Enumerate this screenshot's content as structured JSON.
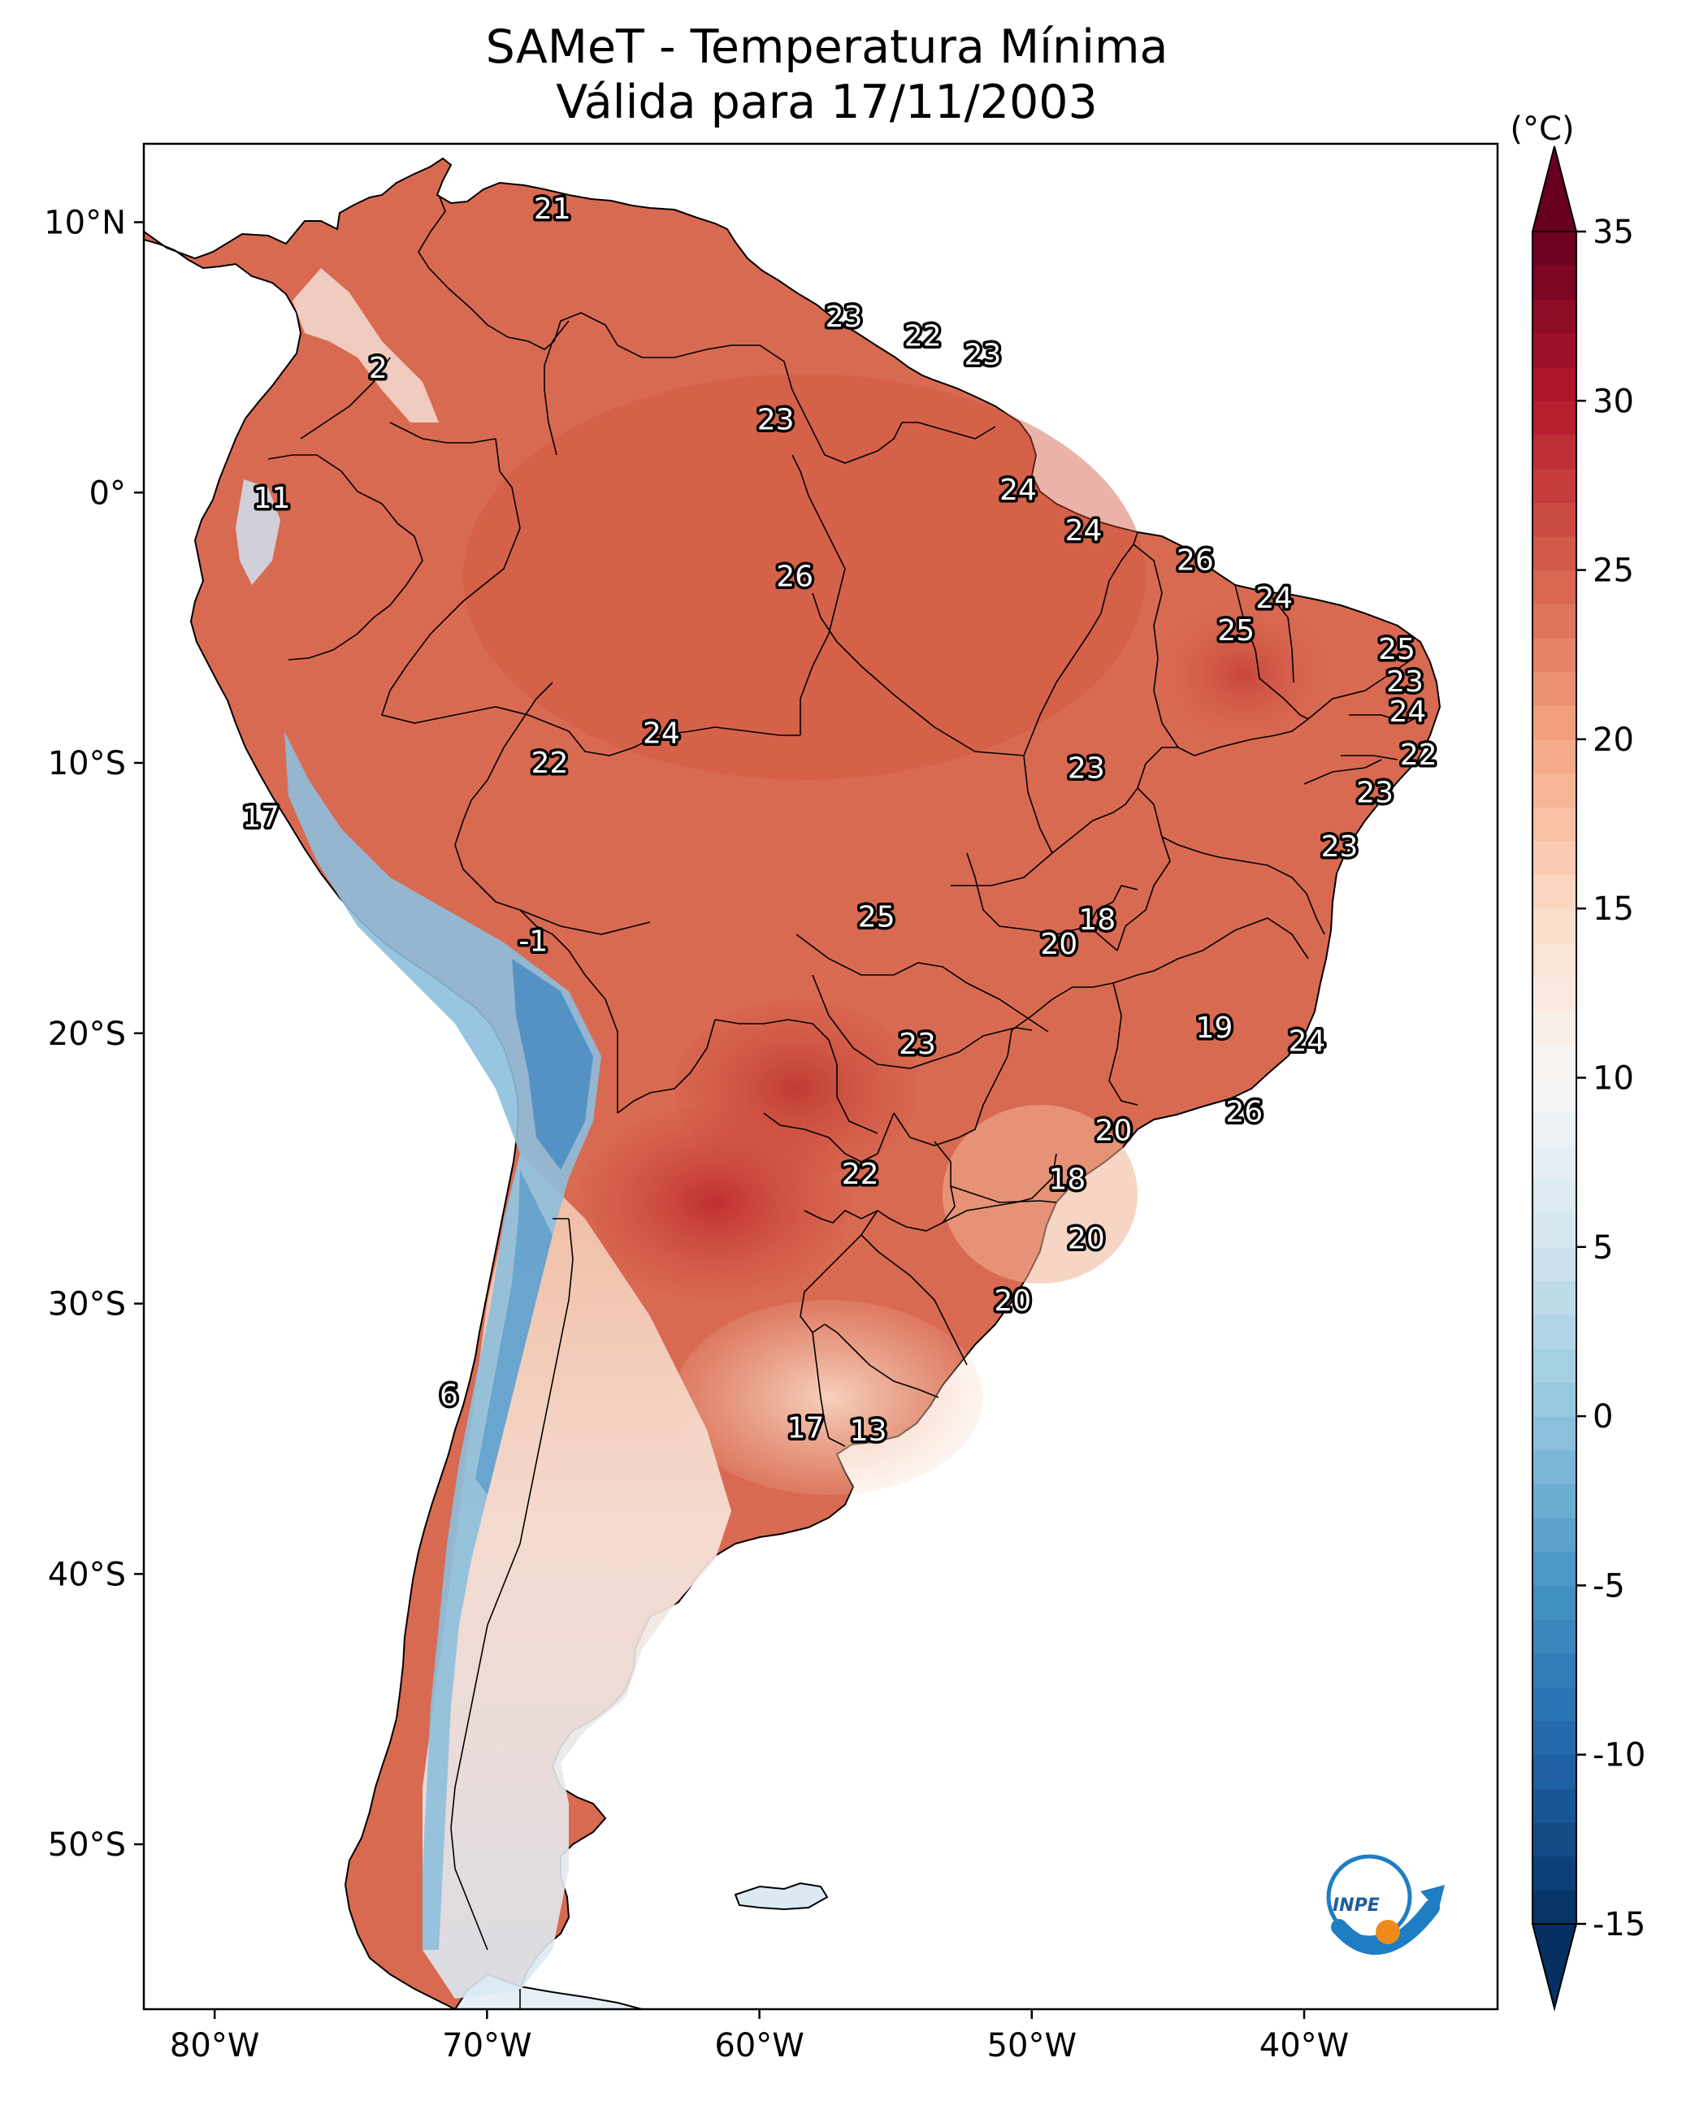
{
  "title": {
    "line1": "SAMeT - Temperatura Mínima",
    "line2": "Válida para 17/11/2003"
  },
  "map": {
    "lon_range": [
      -82.6,
      -32.9
    ],
    "lat_range": [
      -56.1,
      12.9
    ],
    "x_ticks": [
      {
        "lon": -80,
        "label": "80°W"
      },
      {
        "lon": -70,
        "label": "70°W"
      },
      {
        "lon": -60,
        "label": "60°W"
      },
      {
        "lon": -50,
        "label": "50°W"
      },
      {
        "lon": -40,
        "label": "40°W"
      }
    ],
    "y_ticks": [
      {
        "lat": 10,
        "label": "10°N"
      },
      {
        "lat": 0,
        "label": "0°"
      },
      {
        "lat": -10,
        "label": "10°S"
      },
      {
        "lat": -20,
        "label": "20°S"
      },
      {
        "lat": -30,
        "label": "30°S"
      },
      {
        "lat": -40,
        "label": "40°S"
      },
      {
        "lat": -50,
        "label": "50°S"
      }
    ],
    "value_labels": [
      {
        "lon": -67.6,
        "lat": 10.5,
        "text": "21"
      },
      {
        "lon": -56.9,
        "lat": 6.5,
        "text": "23"
      },
      {
        "lon": -54.0,
        "lat": 5.8,
        "text": "22"
      },
      {
        "lon": -51.8,
        "lat": 5.1,
        "text": "23"
      },
      {
        "lon": -59.4,
        "lat": 2.7,
        "text": "23"
      },
      {
        "lon": -74.0,
        "lat": 4.6,
        "text": "2"
      },
      {
        "lon": -50.5,
        "lat": 0.1,
        "text": "24"
      },
      {
        "lon": -77.9,
        "lat": -0.2,
        "text": "11"
      },
      {
        "lon": -48.1,
        "lat": -1.4,
        "text": "24"
      },
      {
        "lon": -58.7,
        "lat": -3.1,
        "text": "26"
      },
      {
        "lon": -44.0,
        "lat": -2.5,
        "text": "26"
      },
      {
        "lon": -41.1,
        "lat": -3.9,
        "text": "24"
      },
      {
        "lon": -42.5,
        "lat": -5.1,
        "text": "25"
      },
      {
        "lon": -36.6,
        "lat": -5.8,
        "text": "25"
      },
      {
        "lon": -36.3,
        "lat": -7.0,
        "text": "23"
      },
      {
        "lon": -36.2,
        "lat": -8.1,
        "text": "24"
      },
      {
        "lon": -35.8,
        "lat": -9.7,
        "text": "22"
      },
      {
        "lon": -37.4,
        "lat": -11.1,
        "text": "23"
      },
      {
        "lon": -63.6,
        "lat": -8.9,
        "text": "24"
      },
      {
        "lon": -67.7,
        "lat": -10.0,
        "text": "22"
      },
      {
        "lon": -48.0,
        "lat": -10.2,
        "text": "23"
      },
      {
        "lon": -78.3,
        "lat": -12.0,
        "text": "17"
      },
      {
        "lon": -38.7,
        "lat": -13.1,
        "text": "23"
      },
      {
        "lon": -55.7,
        "lat": -15.7,
        "text": "25"
      },
      {
        "lon": -47.6,
        "lat": -15.8,
        "text": "18"
      },
      {
        "lon": -49.0,
        "lat": -16.7,
        "text": "20"
      },
      {
        "lon": -68.3,
        "lat": -16.6,
        "text": "-1"
      },
      {
        "lon": -43.3,
        "lat": -19.8,
        "text": "19"
      },
      {
        "lon": -39.9,
        "lat": -20.3,
        "text": "24"
      },
      {
        "lon": -54.2,
        "lat": -20.4,
        "text": "23"
      },
      {
        "lon": -42.2,
        "lat": -22.9,
        "text": "26"
      },
      {
        "lon": -47.0,
        "lat": -23.6,
        "text": "20"
      },
      {
        "lon": -56.3,
        "lat": -25.2,
        "text": "22"
      },
      {
        "lon": -48.7,
        "lat": -25.4,
        "text": "18"
      },
      {
        "lon": -48.0,
        "lat": -27.6,
        "text": "20"
      },
      {
        "lon": -50.7,
        "lat": -29.9,
        "text": "20"
      },
      {
        "lon": -71.4,
        "lat": -33.4,
        "text": "6"
      },
      {
        "lon": -58.3,
        "lat": -34.6,
        "text": "17"
      },
      {
        "lon": -56.0,
        "lat": -34.7,
        "text": "13"
      }
    ]
  },
  "colorbar": {
    "unit_label": "(°C)",
    "min": -15,
    "max": 35,
    "ticks": [
      {
        "value": 35,
        "label": "35"
      },
      {
        "value": 30,
        "label": "30"
      },
      {
        "value": 25,
        "label": "25"
      },
      {
        "value": 20,
        "label": "20"
      },
      {
        "value": 15,
        "label": "15"
      },
      {
        "value": 10,
        "label": "10"
      },
      {
        "value": 5,
        "label": "5"
      },
      {
        "value": 0,
        "label": "0"
      },
      {
        "value": -5,
        "label": "-5"
      },
      {
        "value": -10,
        "label": "-10"
      },
      {
        "value": -15,
        "label": "-15"
      }
    ]
  },
  "logo": {
    "text": "INPE",
    "primary_color": "#1f7dc4",
    "accent_color": "#f08a1c"
  }
}
